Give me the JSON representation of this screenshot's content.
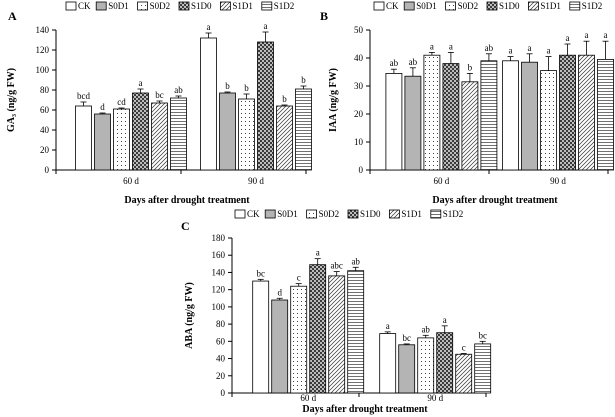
{
  "patterns": {
    "CK": "white",
    "S0D1": "gray",
    "S0D2": "dots",
    "S1D0": "checker",
    "S1D1": "diag-thin",
    "S1D2": "horiz-lines"
  },
  "chart_data": [
    {
      "type": "bar",
      "panel": "A",
      "ylabel": "GA₃ (ng/g FW)",
      "xlabel": "Days after drought treatment",
      "categories": [
        "60 d",
        "90 d"
      ],
      "ylim": [
        0,
        140
      ],
      "yticks": [
        0,
        20,
        40,
        60,
        80,
        100,
        120,
        140
      ],
      "legend": [
        "CK",
        "S0D1",
        "S0D2",
        "S1D0",
        "S1D1",
        "S1D2"
      ],
      "series": [
        {
          "name": "CK",
          "values": [
            64,
            132
          ],
          "errors": [
            4,
            5
          ],
          "labels": [
            "bcd",
            "a"
          ]
        },
        {
          "name": "S0D1",
          "values": [
            56,
            77
          ],
          "errors": [
            1,
            1
          ],
          "labels": [
            "d",
            "b"
          ]
        },
        {
          "name": "S0D2",
          "values": [
            61,
            71
          ],
          "errors": [
            1,
            5
          ],
          "labels": [
            "cd",
            "b"
          ]
        },
        {
          "name": "S1D0",
          "values": [
            77,
            128
          ],
          "errors": [
            4,
            10
          ],
          "labels": [
            "a",
            "a"
          ]
        },
        {
          "name": "S1D1",
          "values": [
            67,
            64
          ],
          "errors": [
            2,
            1
          ],
          "labels": [
            "bc",
            "b"
          ]
        },
        {
          "name": "S1D2",
          "values": [
            72,
            81
          ],
          "errors": [
            2,
            3
          ],
          "labels": [
            "ab",
            "b"
          ]
        }
      ]
    },
    {
      "type": "bar",
      "panel": "B",
      "ylabel": "IAA (ng/g FW)",
      "xlabel": "Days after drought treatment",
      "categories": [
        "60 d",
        "90 d"
      ],
      "ylim": [
        0,
        50
      ],
      "yticks": [
        0,
        10,
        20,
        30,
        40,
        50
      ],
      "legend": [
        "CK",
        "S0D1",
        "S0D2",
        "S1D0",
        "S1D1",
        "S1D2"
      ],
      "series": [
        {
          "name": "CK",
          "values": [
            34.5,
            39
          ],
          "errors": [
            1.5,
            1.5
          ],
          "labels": [
            "ab",
            "a"
          ]
        },
        {
          "name": "S0D1",
          "values": [
            33.5,
            38.5
          ],
          "errors": [
            3,
            3
          ],
          "labels": [
            "ab",
            "a"
          ]
        },
        {
          "name": "S0D2",
          "values": [
            41,
            35.5
          ],
          "errors": [
            1,
            5
          ],
          "labels": [
            "a",
            "a"
          ]
        },
        {
          "name": "S1D0",
          "values": [
            38,
            41
          ],
          "errors": [
            4,
            4
          ],
          "labels": [
            "a",
            "a"
          ]
        },
        {
          "name": "S1D1",
          "values": [
            31.5,
            41
          ],
          "errors": [
            3,
            5
          ],
          "labels": [
            "b",
            "a"
          ]
        },
        {
          "name": "S1D2",
          "values": [
            39,
            39.5
          ],
          "errors": [
            2.5,
            6.5
          ],
          "labels": [
            "ab",
            "a"
          ]
        }
      ]
    },
    {
      "type": "bar",
      "panel": "C",
      "ylabel": "ABA (ng/g FW)",
      "xlabel": "Days after drought treatment",
      "categories": [
        "60 d",
        "90 d"
      ],
      "ylim": [
        0,
        180
      ],
      "yticks": [
        0,
        20,
        40,
        60,
        80,
        100,
        120,
        140,
        160,
        180
      ],
      "legend": [
        "CK",
        "S0D1",
        "S0D2",
        "S1D0",
        "S1D1",
        "S1D2"
      ],
      "series": [
        {
          "name": "CK",
          "values": [
            130,
            69
          ],
          "errors": [
            2,
            2
          ],
          "labels": [
            "bc",
            "a"
          ]
        },
        {
          "name": "S0D1",
          "values": [
            108,
            56
          ],
          "errors": [
            2,
            1
          ],
          "labels": [
            "d",
            "bc"
          ]
        },
        {
          "name": "S0D2",
          "values": [
            124,
            64
          ],
          "errors": [
            3,
            3
          ],
          "labels": [
            "c",
            "ab"
          ]
        },
        {
          "name": "S1D0",
          "values": [
            149,
            70
          ],
          "errors": [
            7,
            8
          ],
          "labels": [
            "a",
            "a"
          ]
        },
        {
          "name": "S1D1",
          "values": [
            136,
            45
          ],
          "errors": [
            5,
            1
          ],
          "labels": [
            "abc",
            "c"
          ]
        },
        {
          "name": "S1D2",
          "values": [
            142,
            57
          ],
          "errors": [
            4,
            3
          ],
          "labels": [
            "ab",
            "bc"
          ]
        }
      ]
    }
  ]
}
